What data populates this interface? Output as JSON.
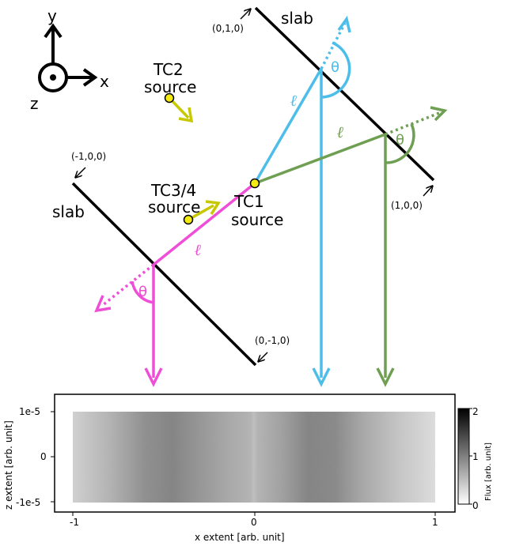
{
  "axes_glyph": {
    "y": "y",
    "x": "x",
    "z": "z"
  },
  "slabs": {
    "right_label": "slab",
    "left_label": "slab",
    "corner_top": "(0,1,0)",
    "corner_right": "(1,0,0)",
    "corner_left": "(-1,0,0)",
    "corner_bottom": "(0,-1,0)"
  },
  "sources": {
    "tc1_line1": "TC1",
    "tc1_line2": "source",
    "tc2_line1": "TC2",
    "tc2_line2": "source",
    "tc34_line1": "TC3/4",
    "tc34_line2": "source"
  },
  "symbols": {
    "path_length": "ℓ",
    "angle": "θ"
  },
  "colors": {
    "blue": "#4dbde9",
    "green": "#6f9f52",
    "magenta": "#ee4fd6",
    "yellow_fill": "#f3ea10",
    "arrow_yellow": "#c8c800"
  },
  "chart_data": {
    "type": "heatmap",
    "xlabel": "x extent [arb. unit]",
    "ylabel": "z extent [arb. unit]",
    "x_ticks": [
      "-1",
      "0",
      "1"
    ],
    "y_ticks": [
      "1e-5",
      "0",
      "-1e-5"
    ],
    "colorbar": {
      "label": "Flux [arb. unit]",
      "ticks": [
        "2",
        "1",
        "0"
      ],
      "min": 0,
      "max": 2
    },
    "x_range": [
      -1,
      1
    ],
    "z_range": [
      -1e-05,
      1e-05
    ],
    "flux_profile_x": [
      -1.0,
      -0.8,
      -0.6,
      -0.45,
      -0.3,
      -0.15,
      -0.02,
      0.0,
      0.02,
      0.15,
      0.3,
      0.45,
      0.6,
      0.8,
      1.0
    ],
    "flux_profile_values": [
      0.35,
      0.6,
      0.9,
      1.0,
      0.85,
      0.7,
      0.6,
      0.5,
      0.6,
      0.75,
      1.0,
      0.95,
      0.7,
      0.45,
      0.25
    ]
  }
}
